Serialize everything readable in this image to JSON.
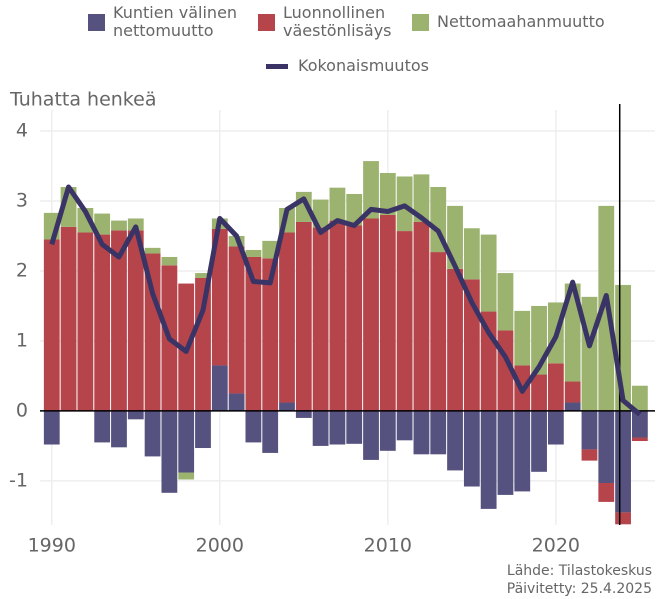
{
  "chart_data": {
    "type": "bar",
    "y_label": "Tuhatta henkeä",
    "x": [
      1990,
      1991,
      1992,
      1993,
      1994,
      1995,
      1996,
      1997,
      1998,
      1999,
      2000,
      2001,
      2002,
      2003,
      2004,
      2005,
      2006,
      2007,
      2008,
      2009,
      2010,
      2011,
      2012,
      2013,
      2014,
      2015,
      2016,
      2017,
      2018,
      2019,
      2020,
      2021,
      2022,
      2023,
      2024,
      2025
    ],
    "series": [
      {
        "name": "Kuntien välinen nettomuutto",
        "color": "#55527f",
        "values": [
          -0.48,
          0,
          0,
          -0.45,
          -0.52,
          -0.12,
          -0.65,
          -1.17,
          -0.88,
          -0.53,
          0.65,
          0.25,
          -0.45,
          -0.6,
          0.12,
          -0.1,
          -0.5,
          -0.48,
          -0.47,
          -0.7,
          -0.57,
          -0.42,
          -0.62,
          -0.62,
          -0.85,
          -1.08,
          -1.4,
          -1.2,
          -1.15,
          -0.87,
          -0.48,
          0.12,
          -0.55,
          -1.03,
          -1.45,
          -0.38
        ]
      },
      {
        "name": "Luonnollinen väestönlisäys",
        "color": "#b5454b",
        "values": [
          2.45,
          2.63,
          2.55,
          2.52,
          2.58,
          2.58,
          2.25,
          2.08,
          1.82,
          1.9,
          1.95,
          2.1,
          2.2,
          2.18,
          2.43,
          2.7,
          2.62,
          2.72,
          2.65,
          2.75,
          2.8,
          2.57,
          2.7,
          2.27,
          2.03,
          1.88,
          1.42,
          1.15,
          0.65,
          0.52,
          0.68,
          0.3,
          -0.16,
          -0.27,
          -0.17,
          -0.05
        ]
      },
      {
        "name": "Nettomaahanmuutto",
        "color": "#9cb26f",
        "values": [
          0.38,
          0.57,
          0.35,
          0.3,
          0.14,
          0.17,
          0.08,
          0.12,
          -0.1,
          0.07,
          0.15,
          0.15,
          0.1,
          0.25,
          0.35,
          0.43,
          0.4,
          0.47,
          0.45,
          0.82,
          0.6,
          0.78,
          0.68,
          0.93,
          0.9,
          0.73,
          1.1,
          0.82,
          0.78,
          0.98,
          0.87,
          1.4,
          1.63,
          2.93,
          1.8,
          0.36
        ]
      }
    ],
    "line": {
      "name": "Kokonaismuutos",
      "color": "#3a3466",
      "values": [
        2.38,
        3.2,
        2.85,
        2.38,
        2.2,
        2.63,
        1.68,
        1.03,
        0.85,
        1.44,
        2.75,
        2.5,
        1.85,
        1.83,
        2.88,
        3.03,
        2.55,
        2.72,
        2.65,
        2.88,
        2.85,
        2.93,
        2.76,
        2.57,
        2.07,
        1.55,
        1.12,
        0.77,
        0.28,
        0.63,
        1.06,
        1.84,
        0.93,
        1.65,
        0.15,
        -0.05
      ]
    },
    "xlim": [
      1989.3,
      2025.9
    ],
    "xticks": [
      1990,
      2000,
      2010,
      2020
    ],
    "ylim": [
      -1.63,
      4.3
    ],
    "yticks": [
      -1,
      0,
      1,
      2,
      3,
      4
    ],
    "grid": true,
    "vline": 2023.8,
    "source": "Lähde: Tilastokeskus",
    "updated": "Päivitetty: 25.4.2025"
  }
}
